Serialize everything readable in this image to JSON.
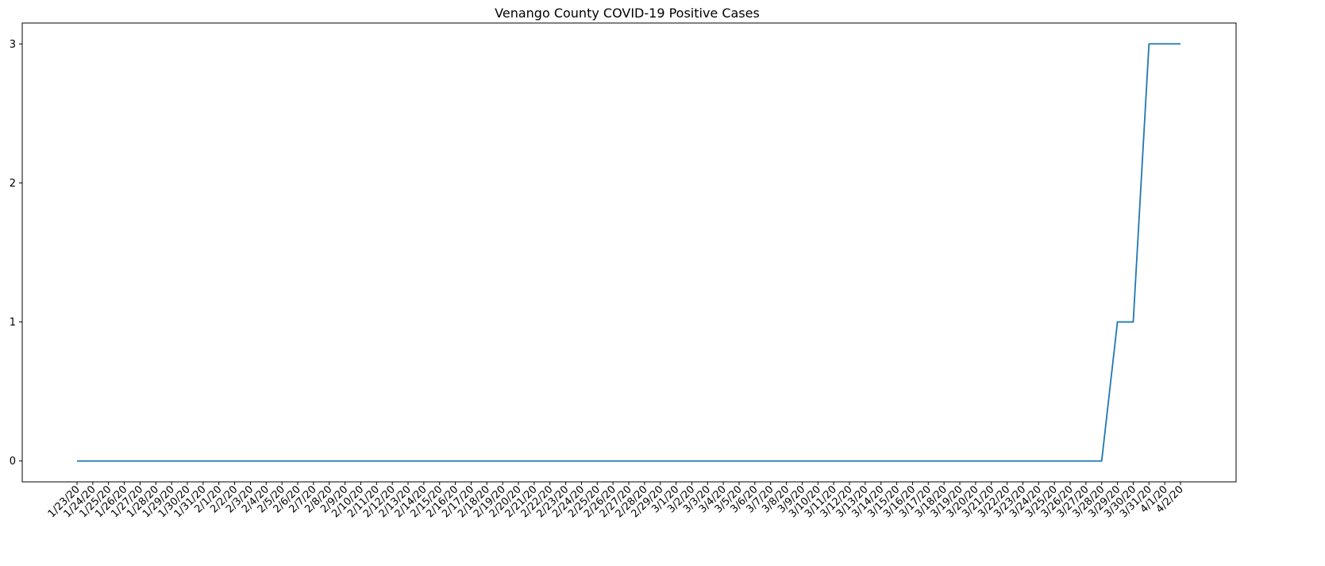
{
  "chart_data": {
    "type": "line",
    "title": "Venango County COVID-19 Positive Cases",
    "xlabel": "",
    "ylabel": "",
    "categories": [
      "1/23/20",
      "1/24/20",
      "1/25/20",
      "1/26/20",
      "1/27/20",
      "1/28/20",
      "1/29/20",
      "1/30/20",
      "1/31/20",
      "2/1/20",
      "2/2/20",
      "2/3/20",
      "2/4/20",
      "2/5/20",
      "2/6/20",
      "2/7/20",
      "2/8/20",
      "2/9/20",
      "2/10/20",
      "2/11/20",
      "2/12/20",
      "2/13/20",
      "2/14/20",
      "2/15/20",
      "2/16/20",
      "2/17/20",
      "2/18/20",
      "2/19/20",
      "2/20/20",
      "2/21/20",
      "2/22/20",
      "2/23/20",
      "2/24/20",
      "2/25/20",
      "2/26/20",
      "2/27/20",
      "2/28/20",
      "2/29/20",
      "3/1/20",
      "3/2/20",
      "3/3/20",
      "3/4/20",
      "3/5/20",
      "3/6/20",
      "3/7/20",
      "3/8/20",
      "3/9/20",
      "3/10/20",
      "3/11/20",
      "3/12/20",
      "3/13/20",
      "3/14/20",
      "3/15/20",
      "3/16/20",
      "3/17/20",
      "3/18/20",
      "3/19/20",
      "3/20/20",
      "3/21/20",
      "3/22/20",
      "3/23/20",
      "3/24/20",
      "3/25/20",
      "3/26/20",
      "3/27/20",
      "3/28/20",
      "3/29/20",
      "3/30/20",
      "3/31/20",
      "4/1/20",
      "4/2/20"
    ],
    "series": [
      {
        "color": "#1f77b4",
        "values": [
          0,
          0,
          0,
          0,
          0,
          0,
          0,
          0,
          0,
          0,
          0,
          0,
          0,
          0,
          0,
          0,
          0,
          0,
          0,
          0,
          0,
          0,
          0,
          0,
          0,
          0,
          0,
          0,
          0,
          0,
          0,
          0,
          0,
          0,
          0,
          0,
          0,
          0,
          0,
          0,
          0,
          0,
          0,
          0,
          0,
          0,
          0,
          0,
          0,
          0,
          0,
          0,
          0,
          0,
          0,
          0,
          0,
          0,
          0,
          0,
          0,
          0,
          0,
          0,
          0,
          0,
          1,
          1,
          3,
          3,
          3
        ]
      }
    ],
    "yticks": [
      0,
      1,
      2,
      3
    ],
    "ylim": [
      -0.15,
      3.15
    ],
    "grid": false,
    "legend": "none"
  }
}
